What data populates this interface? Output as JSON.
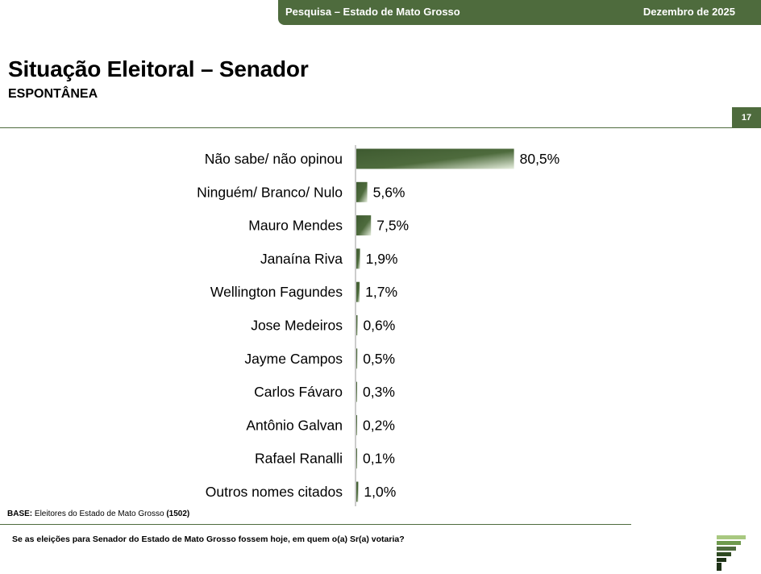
{
  "header": {
    "title": "Pesquisa – Estado de Mato Grosso",
    "date": "Dezembro de 2025"
  },
  "page": {
    "title": "Situação Eleitoral – Senador",
    "subtitle": "ESPONTÂNEA",
    "number": "17"
  },
  "chart_data": {
    "type": "bar",
    "orientation": "horizontal",
    "categories": [
      "Não sabe/ não opinou",
      "Ninguém/ Branco/ Nulo",
      "Mauro Mendes",
      "Janaína Riva",
      "Wellington Fagundes",
      "Jose Medeiros",
      "Jayme Campos",
      "Carlos Fávaro",
      "Antônio Galvan",
      "Rafael Ranalli",
      "Outros nomes citados"
    ],
    "values": [
      80.5,
      5.6,
      7.5,
      1.9,
      1.7,
      0.6,
      0.5,
      0.3,
      0.2,
      0.1,
      1.0
    ],
    "value_labels": [
      "80,5%",
      "5,6%",
      "7,5%",
      "1,9%",
      "1,7%",
      "0,6%",
      "0,5%",
      "0,3%",
      "0,2%",
      "0,1%",
      "1,0%"
    ],
    "xlim": [
      0,
      100
    ],
    "grid": false,
    "legend": "none",
    "bar_color": "#4e6b3d"
  },
  "footer": {
    "base_label": "BASE:",
    "base_text": "Eleitores do Estado de Mato Grosso",
    "base_count": "(1502)",
    "question": "Se as eleições para Senador do Estado de Mato Grosso fossem hoje, em quem o(a) Sr(a) votaria?"
  },
  "logo": {
    "icon": "stacked-bars-logo-icon",
    "colors": [
      "#a8c880",
      "#6f9a4e",
      "#4e6b3d",
      "#2f4a22",
      "#1f3318"
    ]
  },
  "colors": {
    "accent": "#4e6b3d"
  }
}
